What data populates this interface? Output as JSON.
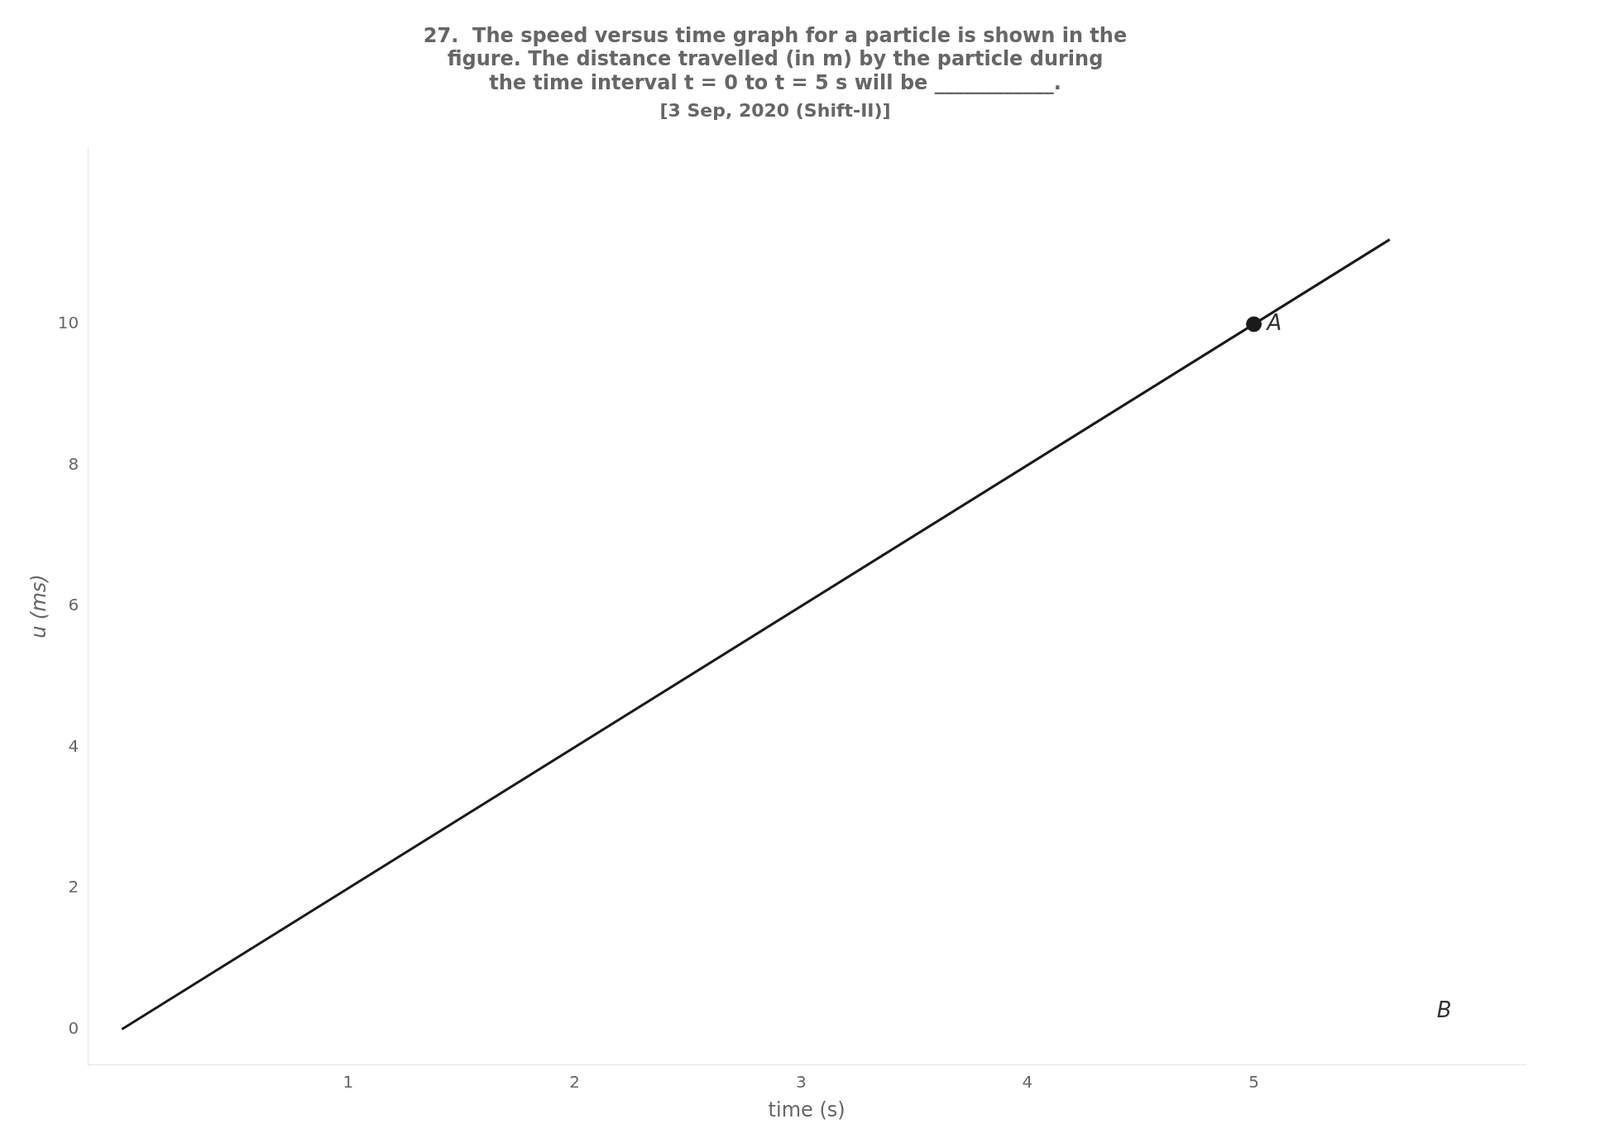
{
  "chart_data": {
    "type": "line",
    "title": [
      "27.  The speed versus time graph for a particle is shown in the",
      "figure. The distance travelled (in m) by the particle during",
      "the time interval t = 0 to t = 5 s will be ____________."
    ],
    "subtitle": "[3 Sep, 2020 (Shift-II)]",
    "x_label": "time (s)",
    "y_label": "u (ms)",
    "series": [
      {
        "type": "line",
        "x": [
          0,
          5.6
        ],
        "values": [
          0,
          11.2
        ],
        "color": "#1a1a1a"
      },
      {
        "type": "scatter",
        "x": [
          5.0
        ],
        "values": [
          10.0
        ],
        "color": "#1a1a1a",
        "marker": "circle"
      }
    ],
    "annotations": [
      {
        "text": "A",
        "x": 5.0,
        "y": 10.0
      },
      {
        "text": "B",
        "x": 5.75,
        "y": 0.25
      }
    ],
    "xlim": [
      -0.15,
      6.2
    ],
    "ylim": [
      -0.5,
      12.5
    ],
    "xticks": [
      1,
      2,
      3,
      4,
      5
    ],
    "yticks": [
      0,
      2,
      4,
      6,
      8,
      10
    ],
    "grid": false,
    "legend": false
  }
}
